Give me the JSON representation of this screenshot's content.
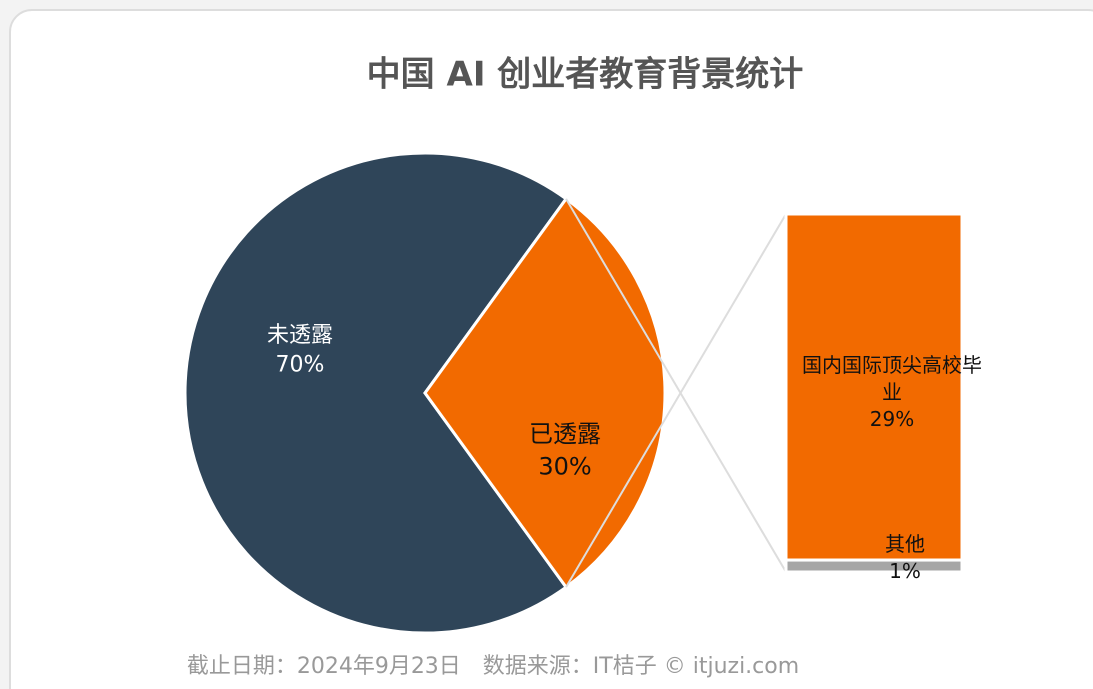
{
  "chart_data": {
    "type": "pie",
    "title": "中国 AI 创业者教育背景统计",
    "categories": [
      "未透露",
      "已透露"
    ],
    "values": [
      70,
      30
    ],
    "value_labels": [
      "70%",
      "30%"
    ],
    "colors": [
      "#2f4559",
      "#f26a00"
    ],
    "breakdown": {
      "categories": [
        "国内国际顶尖高校毕业",
        "其他"
      ],
      "values": [
        29,
        1
      ],
      "value_labels": [
        "29%",
        "1%"
      ],
      "colors": [
        "#f26a00",
        "#a6a6a6"
      ]
    },
    "note": "截止日期：2024年9月23日　数据来源：IT桔子 © itjuzi.com"
  }
}
